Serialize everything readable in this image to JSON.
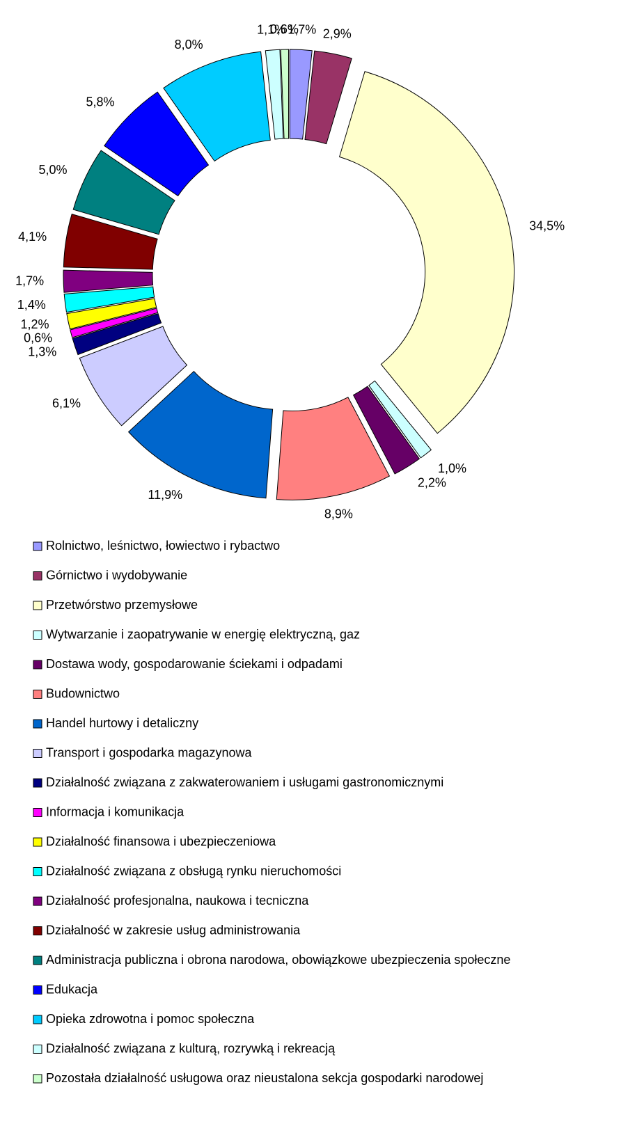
{
  "chart_data": {
    "type": "donut",
    "categories": [
      "Rolnictwo, leśnictwo, łowiectwo i rybactwo",
      "Górnictwo i wydobywanie",
      "Przetwórstwo przemysłowe",
      "Wytwarzanie i zaopatrywanie w energię elektryczną, gaz",
      "Dostawa wody, gospodarowanie ściekami i odpadami",
      "Budownictwo",
      "Handel hurtowy i detaliczny",
      "Transport i gospodarka magazynowa",
      "Działalność związana z zakwaterowaniem i usługami gastronomicznymi",
      "Informacja i komunikacja",
      "Działalność finansowa i ubezpieczeniowa",
      "Działalność związana z obsługą rynku nieruchomości",
      "Działalność profesjonalna, naukowa i tecniczna",
      "Działalność w zakresie usług administrowania",
      "Administracja publiczna i obrona narodowa, obowiązkowe ubezpieczenia społeczne",
      "Edukacja",
      "Opieka zdrowotna i pomoc społeczna",
      "Działalność związana z kulturą, rozrywką i rekreacją",
      "Pozostała działalność usługowa oraz nieustalona sekcja gospodarki narodowej"
    ],
    "values": [
      1.7,
      2.9,
      34.5,
      1.0,
      2.2,
      8.9,
      11.9,
      6.1,
      1.3,
      0.6,
      1.2,
      1.4,
      1.7,
      4.1,
      5.0,
      5.8,
      8.0,
      1.1,
      0.6
    ],
    "value_labels": [
      "1,7%",
      "2,9%",
      "34,5%",
      "1,0%",
      "2,2%",
      "8,9%",
      "11,9%",
      "6,1%",
      "1,3%",
      "0,6%",
      "1,2%",
      "1,4%",
      "1,7%",
      "4,1%",
      "5,0%",
      "5,8%",
      "8,0%",
      "1,1%",
      "0,6%"
    ],
    "colors": [
      "#9999ff",
      "#993366",
      "#ffffcc",
      "#ccffff",
      "#660066",
      "#ff8080",
      "#0066cc",
      "#ccccff",
      "#000080",
      "#ff00ff",
      "#ffff00",
      "#00ffff",
      "#800080",
      "#800000",
      "#008080",
      "#0000ff",
      "#00ccff",
      "#ccffff",
      "#ccffcc"
    ],
    "legend": "bottom"
  }
}
